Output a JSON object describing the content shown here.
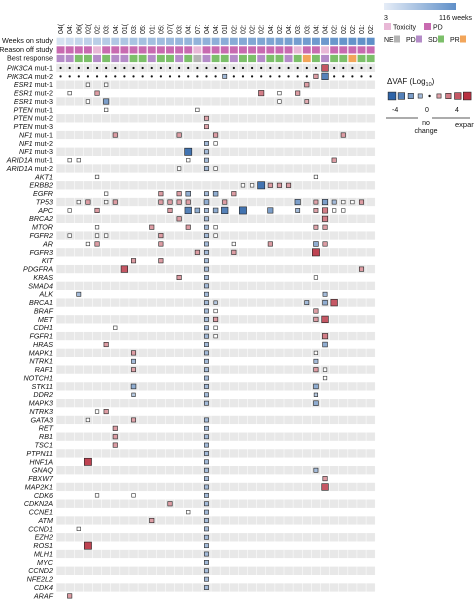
{
  "chart_data": {
    "type": "heatmap",
    "x_label": "Weeks on study",
    "header_rows": [
      {
        "label": "Weeks on study"
      },
      {
        "label": "Reason off study"
      },
      {
        "label": "Best response"
      }
    ],
    "patients": [
      "04(",
      "04:",
      "06(",
      "02(",
      "02:",
      "03:",
      "04:",
      "01(",
      "03:",
      "05:",
      "01:",
      "05:",
      "07(",
      "03:",
      "04:",
      "07:",
      "04:",
      "04:",
      "01l",
      "02:",
      "02:",
      "02:",
      "02:",
      "04:",
      "02:",
      "04:",
      "03:",
      "03:",
      "04:",
      "04:",
      "02:",
      "02:",
      "02:",
      "01:",
      "02:"
    ],
    "weeks_scale": {
      "min": "3",
      "max": "116 weeks",
      "low_color": "#e6edf7",
      "high_color": "#5f8fc8"
    },
    "weeks_level": [
      0.12,
      0.18,
      0.25,
      0.3,
      0.33,
      0.36,
      0.4,
      0.42,
      0.45,
      0.48,
      0.5,
      0.52,
      0.55,
      0.58,
      0.6,
      0.62,
      0.64,
      0.66,
      0.68,
      0.7,
      0.72,
      0.74,
      0.76,
      0.78,
      0.8,
      0.82,
      0.84,
      0.86,
      0.88,
      0.9,
      0.92,
      0.94,
      0.96,
      0.98,
      1.0
    ],
    "reason_off": [
      "PD",
      "PD",
      "PD",
      "PD",
      "Toxicity",
      "PD",
      "PD",
      "PD",
      "PD",
      "PD",
      "PD",
      "PD",
      "PD",
      "PD",
      "PD",
      "Toxicity",
      "PD",
      "PD",
      "PD",
      "PD",
      "PD",
      "PD",
      "PD",
      "PD",
      "PD",
      "PD",
      "Toxicity",
      "PD",
      "PD",
      "Toxicity",
      "PD",
      "PD",
      "PD",
      "PD",
      "PD"
    ],
    "best_response": [
      "PD",
      "PD",
      "SD",
      "SD",
      "PD",
      "SD",
      "PD",
      "PD",
      "SD",
      "SD",
      "PD",
      "SD",
      "SD",
      "PD",
      "SD",
      "NE",
      "PD",
      "SD",
      "SD",
      "PD",
      "SD",
      "SD",
      "PD",
      "SD",
      "SD",
      "PD",
      "SD",
      "PR",
      "SD",
      "PD",
      "SD",
      "SD",
      "PR",
      "SD",
      "SD"
    ],
    "legend_reason": [
      {
        "label": "Toxicity",
        "color": "#e8b8d6"
      },
      {
        "label": "PD",
        "color": "#c86ab0"
      }
    ],
    "legend_response": [
      {
        "label": "NE",
        "color": "#b4b4b4"
      },
      {
        "label": "PD",
        "color": "#b48cc8"
      },
      {
        "label": "SD",
        "color": "#7cbf6a"
      },
      {
        "label": "PR",
        "color": "#f2a55a"
      }
    ],
    "vaf_legend": {
      "title": "ΔVAF (Log",
      "title_sub": "10",
      "title_end": ")",
      "min": "-4",
      "mid": "0",
      "max": "4",
      "no_change": "no change",
      "expand": "expand"
    },
    "genes": [
      "PIK3CA mut-1",
      "PIK3CA mut-2",
      "ESR1 mut-1",
      "ESR1 mut-2",
      "ESR1 mut-3",
      "PTEN mut-1",
      "PTEN mut-2",
      "PTEN mut-3",
      "NF1 mut-1",
      "NF1 mut-2",
      "NF1 mut-3",
      "ARID1A mut-1",
      "ARID1A mut-2",
      "AKT1",
      "ERBB2",
      "EGFR",
      "TP53",
      "APC",
      "BRCA2",
      "MTOR",
      "FGFR2",
      "AR",
      "FGFR3",
      "KIT",
      "PDGFRA",
      "KRAS",
      "SMAD4",
      "ALK",
      "BRCA1",
      "BRAF",
      "MET",
      "CDH1",
      "FGFR1",
      "HRAS",
      "MAPK1",
      "NTRK1",
      "RAF1",
      "NOTCH1",
      "STK11",
      "DDR2",
      "MAPK3",
      "NTRK3",
      "GATA3",
      "RET",
      "RB1",
      "TSC1",
      "PTPN11",
      "HNF1A",
      "GNAQ",
      "FBXW7",
      "MAP2K1",
      "CDK6",
      "CDKN2A",
      "CCNE1",
      "ATM",
      "CCND1",
      "EZH2",
      "ROS1",
      "MLH1",
      "MYC",
      "CCND2",
      "NFE2L2",
      "CDK4",
      "ARAF"
    ],
    "color_scale": {
      "min": -4,
      "max": 4,
      "negative": "#2e64a8",
      "positive": "#b83040",
      "neutral": "#ffffff"
    },
    "row_background": {
      "odd": "#e8e8e8",
      "even": "#ffffff"
    },
    "cells": [
      [
        0,
        0,
        0
      ],
      [
        0,
        1,
        0
      ],
      [
        0,
        2,
        0
      ],
      [
        0,
        3,
        0
      ],
      [
        0,
        4,
        0
      ],
      [
        0,
        5,
        0
      ],
      [
        0,
        6,
        0
      ],
      [
        0,
        7,
        0
      ],
      [
        0,
        8,
        0
      ],
      [
        0,
        9,
        0
      ],
      [
        0,
        10,
        0
      ],
      [
        0,
        11,
        0
      ],
      [
        0,
        12,
        0
      ],
      [
        0,
        13,
        0
      ],
      [
        0,
        14,
        0
      ],
      [
        0,
        15,
        0
      ],
      [
        0,
        16,
        0
      ],
      [
        0,
        17,
        0
      ],
      [
        0,
        18,
        0
      ],
      [
        0,
        19,
        0
      ],
      [
        0,
        20,
        0
      ],
      [
        0,
        21,
        0
      ],
      [
        0,
        22,
        0
      ],
      [
        0,
        23,
        0
      ],
      [
        0,
        24,
        0
      ],
      [
        0,
        25,
        0
      ],
      [
        0,
        26,
        0
      ],
      [
        0,
        27,
        0
      ],
      [
        0,
        28,
        0
      ],
      [
        0,
        29,
        0
      ],
      [
        0,
        30,
        0
      ],
      [
        0,
        31,
        0
      ],
      [
        0,
        32,
        0
      ],
      [
        0,
        33,
        0
      ],
      [
        0,
        34,
        0
      ],
      [
        1,
        0,
        0
      ],
      [
        1,
        1,
        0
      ],
      [
        1,
        2,
        0
      ],
      [
        1,
        3,
        0
      ],
      [
        1,
        4,
        0
      ],
      [
        1,
        5,
        0
      ],
      [
        1,
        6,
        0
      ],
      [
        1,
        7,
        0
      ],
      [
        1,
        8,
        0
      ],
      [
        1,
        9,
        0
      ],
      [
        1,
        10,
        0
      ],
      [
        1,
        11,
        0
      ],
      [
        1,
        12,
        0
      ],
      [
        1,
        13,
        0
      ],
      [
        1,
        14,
        0
      ],
      [
        1,
        15,
        0
      ],
      [
        1,
        16,
        0
      ],
      [
        1,
        17,
        0
      ],
      [
        1,
        18,
        0
      ],
      [
        1,
        19,
        0
      ],
      [
        1,
        20,
        0
      ],
      [
        1,
        21,
        0
      ],
      [
        1,
        22,
        0
      ],
      [
        1,
        23,
        0
      ],
      [
        1,
        24,
        0
      ],
      [
        1,
        25,
        0
      ],
      [
        1,
        26,
        0
      ],
      [
        1,
        27,
        0
      ],
      [
        1,
        28,
        0
      ],
      [
        1,
        29,
        0
      ],
      [
        1,
        30,
        0
      ],
      [
        1,
        31,
        0
      ],
      [
        1,
        32,
        0
      ],
      [
        1,
        33,
        0
      ],
      [
        1,
        34,
        0
      ],
      [
        0,
        29,
        3
      ],
      [
        1,
        18,
        -1
      ],
      [
        1,
        28,
        1.2
      ],
      [
        1,
        29,
        -3
      ],
      [
        2,
        3,
        0
      ],
      [
        2,
        5,
        0
      ],
      [
        2,
        27,
        1.2
      ],
      [
        3,
        1,
        0
      ],
      [
        3,
        4,
        1.2
      ],
      [
        3,
        22,
        2
      ],
      [
        3,
        24,
        0
      ],
      [
        3,
        26,
        1.2
      ],
      [
        4,
        3,
        0
      ],
      [
        4,
        5,
        -2
      ],
      [
        4,
        24,
        0
      ],
      [
        4,
        27,
        0.8
      ],
      [
        5,
        5,
        0
      ],
      [
        5,
        15,
        0
      ],
      [
        6,
        16,
        1
      ],
      [
        7,
        16,
        1
      ],
      [
        8,
        6,
        1.2
      ],
      [
        8,
        13,
        1.2
      ],
      [
        8,
        17,
        1.2
      ],
      [
        8,
        31,
        1.2
      ],
      [
        9,
        16,
        -1
      ],
      [
        9,
        17,
        0
      ],
      [
        10,
        14,
        -3.5
      ],
      [
        10,
        16,
        -1
      ],
      [
        11,
        1,
        0
      ],
      [
        11,
        2,
        0
      ],
      [
        11,
        14,
        0
      ],
      [
        11,
        16,
        -1
      ],
      [
        11,
        30,
        1.2
      ],
      [
        12,
        13,
        0
      ],
      [
        12,
        16,
        -1
      ],
      [
        12,
        17,
        0
      ],
      [
        13,
        4,
        0
      ],
      [
        13,
        28,
        0
      ],
      [
        14,
        20,
        0
      ],
      [
        14,
        21,
        0
      ],
      [
        14,
        22,
        -3.5
      ],
      [
        14,
        23,
        1.2
      ],
      [
        14,
        24,
        1.2
      ],
      [
        14,
        25,
        1.2
      ],
      [
        15,
        5,
        0
      ],
      [
        15,
        11,
        1.2
      ],
      [
        15,
        13,
        1.2
      ],
      [
        15,
        14,
        -1.5
      ],
      [
        15,
        16,
        -1
      ],
      [
        15,
        17,
        -1.5
      ],
      [
        15,
        19,
        1.2
      ],
      [
        16,
        2,
        0
      ],
      [
        16,
        3,
        1.2
      ],
      [
        16,
        5,
        0
      ],
      [
        16,
        6,
        1.2
      ],
      [
        16,
        11,
        1.2
      ],
      [
        16,
        12,
        1.2
      ],
      [
        16,
        13,
        1.2
      ],
      [
        16,
        14,
        1.2
      ],
      [
        16,
        16,
        -1.5
      ],
      [
        16,
        18,
        1.2
      ],
      [
        16,
        26,
        -2
      ],
      [
        16,
        28,
        1
      ],
      [
        16,
        29,
        -2
      ],
      [
        16,
        30,
        -1
      ],
      [
        16,
        31,
        0
      ],
      [
        16,
        32,
        0
      ],
      [
        16,
        33,
        1.2
      ],
      [
        17,
        1,
        0
      ],
      [
        17,
        4,
        1.2
      ],
      [
        17,
        12,
        1.2
      ],
      [
        17,
        14,
        -3
      ],
      [
        17,
        15,
        -1.5
      ],
      [
        17,
        16,
        -1
      ],
      [
        17,
        17,
        -1.5
      ],
      [
        17,
        18,
        -3
      ],
      [
        17,
        20,
        -3.5
      ],
      [
        17,
        23,
        -2
      ],
      [
        17,
        26,
        -1
      ],
      [
        17,
        28,
        1
      ],
      [
        17,
        29,
        2
      ],
      [
        17,
        30,
        0
      ],
      [
        17,
        31,
        0
      ],
      [
        18,
        13,
        1.2
      ],
      [
        18,
        16,
        -1
      ],
      [
        18,
        29,
        2
      ],
      [
        19,
        4,
        0
      ],
      [
        19,
        10,
        1.2
      ],
      [
        19,
        14,
        1.2
      ],
      [
        19,
        16,
        -1
      ],
      [
        19,
        17,
        0
      ],
      [
        19,
        28,
        1
      ],
      [
        19,
        29,
        1.2
      ],
      [
        20,
        1,
        0
      ],
      [
        20,
        4,
        0
      ],
      [
        20,
        5,
        0
      ],
      [
        20,
        11,
        1.2
      ],
      [
        20,
        16,
        -1
      ],
      [
        20,
        17,
        0
      ],
      [
        21,
        3,
        0
      ],
      [
        21,
        4,
        1.2
      ],
      [
        21,
        11,
        1.2
      ],
      [
        21,
        16,
        -1
      ],
      [
        21,
        19,
        0
      ],
      [
        21,
        23,
        1.2
      ],
      [
        21,
        28,
        -1.5
      ],
      [
        21,
        29,
        1.2
      ],
      [
        22,
        15,
        1.2
      ],
      [
        22,
        16,
        -1
      ],
      [
        22,
        19,
        1.2
      ],
      [
        22,
        28,
        3.5
      ],
      [
        23,
        8,
        1.2
      ],
      [
        23,
        11,
        1.2
      ],
      [
        23,
        16,
        -1
      ],
      [
        24,
        7,
        3
      ],
      [
        24,
        16,
        -1
      ],
      [
        24,
        33,
        1.2
      ],
      [
        25,
        13,
        1.2
      ],
      [
        25,
        16,
        -1
      ],
      [
        25,
        28,
        0
      ],
      [
        26,
        16,
        -1
      ],
      [
        27,
        2,
        -1
      ],
      [
        27,
        16,
        -1
      ],
      [
        27,
        29,
        -1
      ],
      [
        28,
        16,
        -1
      ],
      [
        28,
        17,
        -0.5
      ],
      [
        28,
        27,
        -1
      ],
      [
        28,
        29,
        -1.5
      ],
      [
        28,
        30,
        3
      ],
      [
        29,
        16,
        -1
      ],
      [
        29,
        17,
        0
      ],
      [
        29,
        28,
        1.2
      ],
      [
        30,
        16,
        -1
      ],
      [
        30,
        17,
        1.2
      ],
      [
        30,
        28,
        1.2
      ],
      [
        30,
        29,
        3
      ],
      [
        31,
        6,
        0
      ],
      [
        31,
        16,
        -1
      ],
      [
        31,
        17,
        0
      ],
      [
        32,
        16,
        -1
      ],
      [
        32,
        17,
        0
      ],
      [
        32,
        29,
        2
      ],
      [
        33,
        5,
        1.2
      ],
      [
        33,
        16,
        -1
      ],
      [
        33,
        29,
        -1.5
      ],
      [
        34,
        8,
        1.2
      ],
      [
        34,
        16,
        -1
      ],
      [
        34,
        28,
        0
      ],
      [
        35,
        8,
        -1
      ],
      [
        35,
        16,
        -1
      ],
      [
        35,
        28,
        -1
      ],
      [
        36,
        8,
        1
      ],
      [
        36,
        16,
        -1
      ],
      [
        36,
        28,
        1.2
      ],
      [
        36,
        29,
        0
      ],
      [
        37,
        16,
        -1
      ],
      [
        37,
        29,
        0
      ],
      [
        38,
        8,
        -1.5
      ],
      [
        38,
        16,
        -1
      ],
      [
        38,
        28,
        -1.5
      ],
      [
        39,
        8,
        -0.5
      ],
      [
        39,
        16,
        -1
      ],
      [
        39,
        28,
        -0.5
      ],
      [
        40,
        16,
        -1
      ],
      [
        40,
        28,
        -1.5
      ],
      [
        41,
        4,
        0
      ],
      [
        41,
        5,
        1.2
      ],
      [
        42,
        3,
        0
      ],
      [
        42,
        8,
        1
      ],
      [
        42,
        16,
        -1
      ],
      [
        43,
        6,
        1.2
      ],
      [
        43,
        16,
        -1
      ],
      [
        44,
        6,
        1.2
      ],
      [
        44,
        16,
        -1
      ],
      [
        45,
        6,
        1.2
      ],
      [
        45,
        16,
        -1
      ],
      [
        46,
        16,
        -1
      ],
      [
        47,
        3,
        3.5
      ],
      [
        47,
        16,
        -1
      ],
      [
        48,
        16,
        -1
      ],
      [
        48,
        28,
        -1
      ],
      [
        49,
        16,
        -1
      ],
      [
        49,
        29,
        1.2
      ],
      [
        50,
        16,
        -1
      ],
      [
        50,
        29,
        3
      ],
      [
        51,
        4,
        0
      ],
      [
        51,
        8,
        0
      ],
      [
        51,
        16,
        -1
      ],
      [
        52,
        12,
        1.2
      ],
      [
        52,
        16,
        -1
      ],
      [
        53,
        14,
        0
      ],
      [
        53,
        16,
        -1
      ],
      [
        54,
        10,
        1.2
      ],
      [
        54,
        16,
        -1
      ],
      [
        55,
        2,
        0
      ],
      [
        55,
        16,
        -1
      ],
      [
        56,
        16,
        -1
      ],
      [
        57,
        3,
        3.5
      ],
      [
        57,
        16,
        -1
      ],
      [
        58,
        16,
        -1
      ],
      [
        59,
        16,
        -1
      ],
      [
        60,
        16,
        -1
      ],
      [
        61,
        16,
        -1
      ],
      [
        62,
        16,
        -1
      ],
      [
        63,
        1,
        1.2
      ]
    ]
  }
}
